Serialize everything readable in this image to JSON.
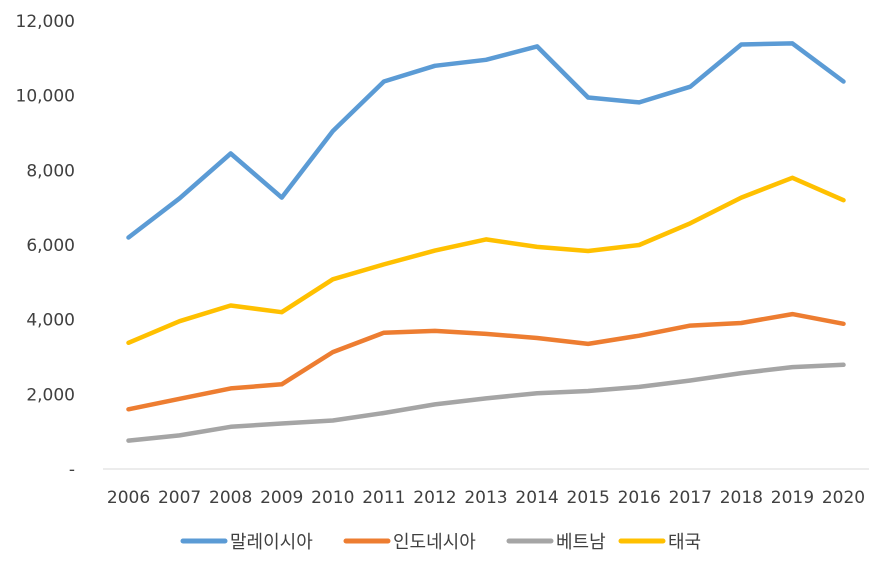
{
  "chart_data": {
    "type": "line",
    "title": "",
    "xlabel": "",
    "ylabel": "",
    "categories": [
      "2006",
      "2007",
      "2008",
      "2009",
      "2010",
      "2011",
      "2012",
      "2013",
      "2014",
      "2015",
      "2016",
      "2017",
      "2018",
      "2019",
      "2020"
    ],
    "ylim": [
      0,
      12000
    ],
    "yticks": [
      0,
      2000,
      4000,
      6000,
      8000,
      10000,
      12000
    ],
    "ytick_labels": [
      "-",
      "2,000",
      "4,000",
      "6,000",
      "8,000",
      "10,000",
      "12,000"
    ],
    "grid": false,
    "legend_position": "bottom",
    "series": [
      {
        "name": "말레이시아",
        "color": "#5B9BD5",
        "values": [
          6200,
          7250,
          8450,
          7270,
          9050,
          10380,
          10800,
          10960,
          11320,
          9950,
          9820,
          10240,
          11370,
          11400,
          10380
        ]
      },
      {
        "name": "인도네시아",
        "color": "#ED7D31",
        "values": [
          1600,
          1880,
          2160,
          2270,
          3130,
          3650,
          3700,
          3620,
          3510,
          3350,
          3570,
          3840,
          3910,
          4150,
          3890
        ]
      },
      {
        "name": "베트남",
        "color": "#A5A5A5",
        "values": [
          760,
          900,
          1130,
          1220,
          1300,
          1500,
          1730,
          1890,
          2030,
          2090,
          2200,
          2370,
          2570,
          2730,
          2790
        ]
      },
      {
        "name": "태국",
        "color": "#FFC000",
        "values": [
          3380,
          3960,
          4380,
          4200,
          5080,
          5480,
          5850,
          6150,
          5950,
          5840,
          6000,
          6580,
          7270,
          7800,
          7200
        ]
      }
    ]
  }
}
